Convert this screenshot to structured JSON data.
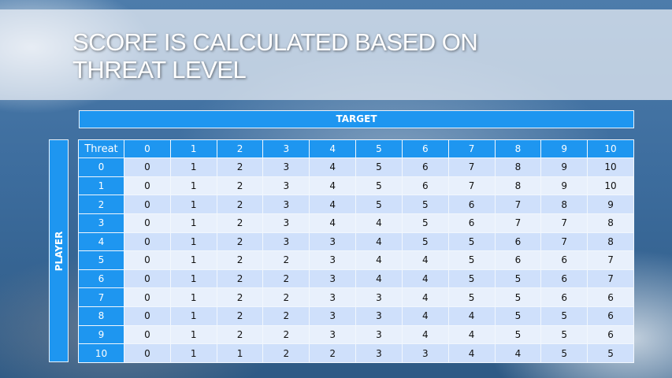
{
  "slide": {
    "title_line1": "SCORE IS CALCULATED BASED ON",
    "title_line2": "THREAT LEVEL"
  },
  "table": {
    "column_axis_label": "TARGET",
    "row_axis_label": "PLAYER",
    "corner_label": "Threat",
    "columns": [
      "0",
      "1",
      "2",
      "3",
      "4",
      "5",
      "6",
      "7",
      "8",
      "9",
      "10"
    ],
    "rows": [
      {
        "label": "0",
        "values": [
          "0",
          "1",
          "2",
          "3",
          "4",
          "5",
          "6",
          "7",
          "8",
          "9",
          "10"
        ]
      },
      {
        "label": "1",
        "values": [
          "0",
          "1",
          "2",
          "3",
          "4",
          "5",
          "6",
          "7",
          "8",
          "9",
          "10"
        ]
      },
      {
        "label": "2",
        "values": [
          "0",
          "1",
          "2",
          "3",
          "4",
          "5",
          "5",
          "6",
          "7",
          "8",
          "9"
        ]
      },
      {
        "label": "3",
        "values": [
          "0",
          "1",
          "2",
          "3",
          "4",
          "4",
          "5",
          "6",
          "7",
          "7",
          "8"
        ]
      },
      {
        "label": "4",
        "values": [
          "0",
          "1",
          "2",
          "3",
          "3",
          "4",
          "5",
          "5",
          "6",
          "7",
          "8"
        ]
      },
      {
        "label": "5",
        "values": [
          "0",
          "1",
          "2",
          "2",
          "3",
          "4",
          "4",
          "5",
          "6",
          "6",
          "7"
        ]
      },
      {
        "label": "6",
        "values": [
          "0",
          "1",
          "2",
          "2",
          "3",
          "4",
          "4",
          "5",
          "5",
          "6",
          "7"
        ]
      },
      {
        "label": "7",
        "values": [
          "0",
          "1",
          "2",
          "2",
          "3",
          "3",
          "4",
          "5",
          "5",
          "6",
          "6"
        ]
      },
      {
        "label": "8",
        "values": [
          "0",
          "1",
          "2",
          "2",
          "3",
          "3",
          "4",
          "4",
          "5",
          "5",
          "6"
        ]
      },
      {
        "label": "9",
        "values": [
          "0",
          "1",
          "2",
          "2",
          "3",
          "3",
          "4",
          "4",
          "5",
          "5",
          "6"
        ]
      },
      {
        "label": "10",
        "values": [
          "0",
          "1",
          "1",
          "2",
          "2",
          "3",
          "3",
          "4",
          "4",
          "5",
          "5"
        ]
      }
    ]
  },
  "colors": {
    "header_blue": "#1e96f0",
    "row_dark": "#cfe0fb",
    "row_light": "#e8f0fc"
  }
}
